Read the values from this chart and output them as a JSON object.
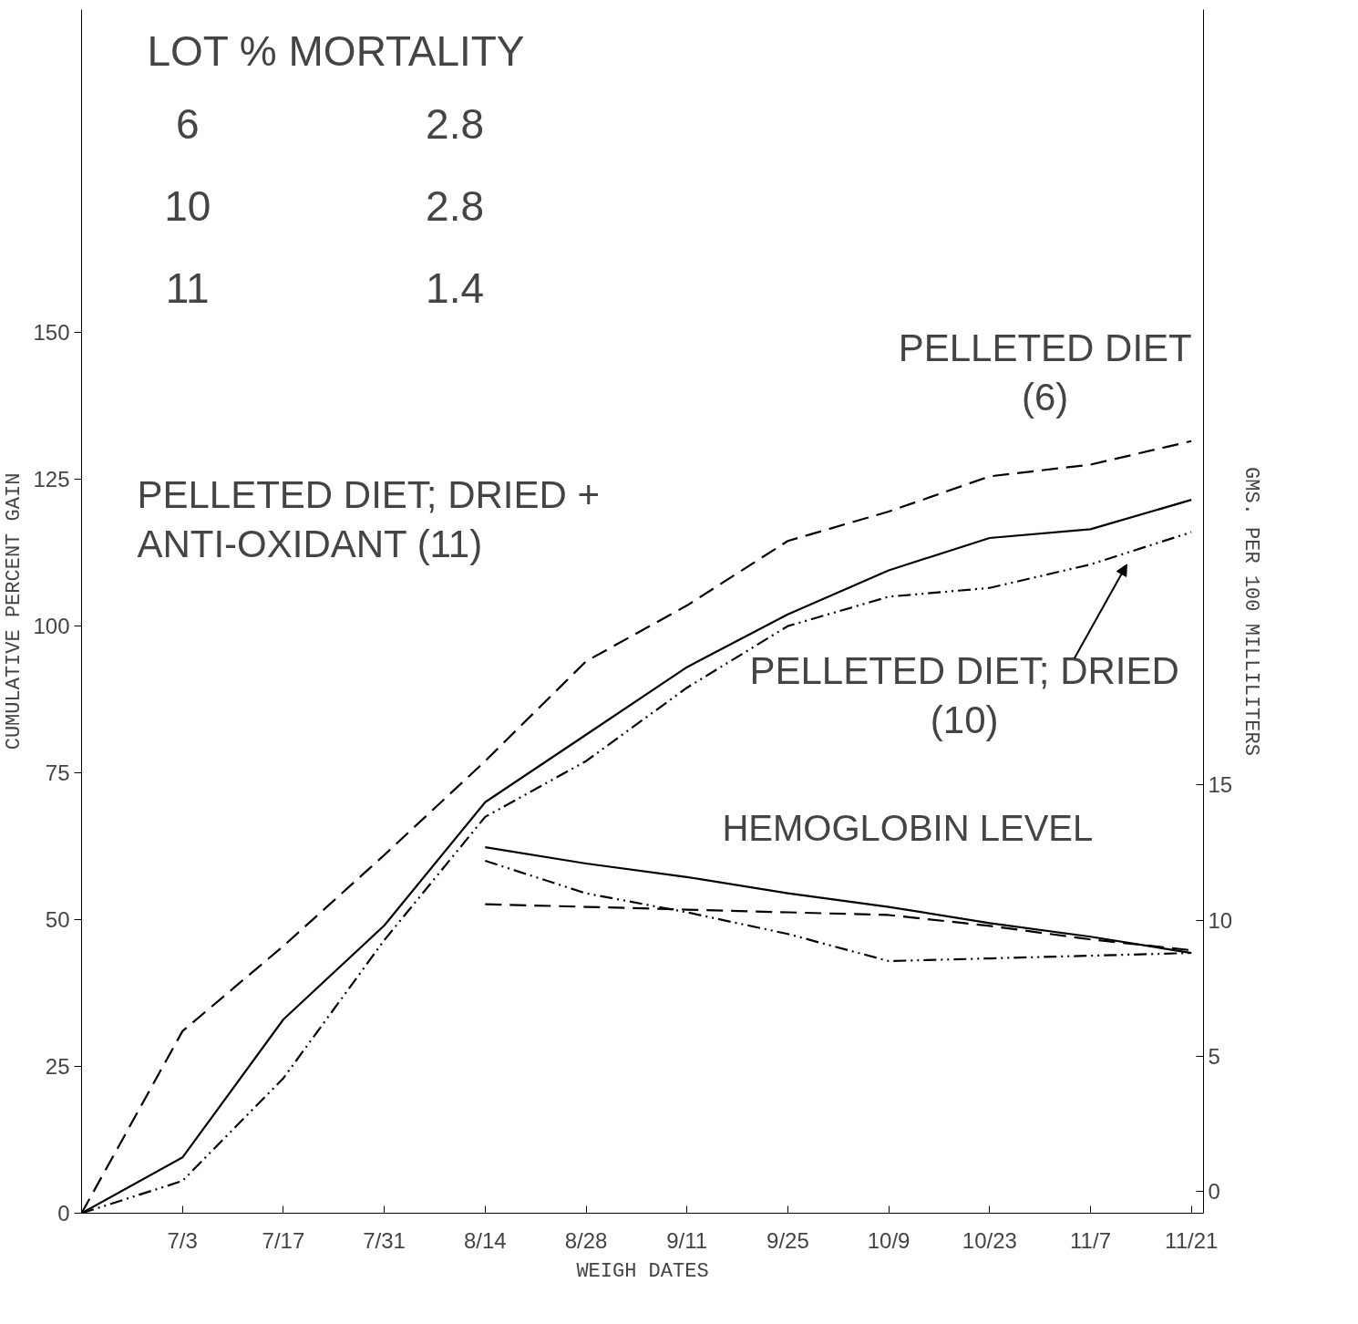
{
  "chart_data": {
    "type": "line",
    "xlabel": "WEIGH DATES",
    "ylabel": "CUMULATIVE PERCENT GAIN",
    "y2label": "GMS. PER 100 MILLILITERS",
    "categories": [
      null,
      "7/3",
      "7/17",
      "7/31",
      "8/14",
      "8/28",
      "9/11",
      "9/25",
      "10/9",
      "10/23",
      "11/7",
      "11/21"
    ],
    "series": [
      {
        "color": "#000000",
        "line_style": "dashed",
        "values": [
          0,
          31,
          45.5,
          61,
          77,
          94,
          103.5,
          114.5,
          119.5,
          125.5,
          127.5,
          131.5
        ]
      },
      {
        "color": "#000000",
        "line_style": "solid",
        "values": [
          0,
          9.5,
          33,
          49,
          70,
          81.5,
          93,
          102,
          109.5,
          115,
          116.5,
          121.5
        ]
      },
      {
        "color": "#000000",
        "line_style": "dotted",
        "values": [
          0,
          5.5,
          23,
          46.5,
          67.5,
          77,
          89.5,
          100,
          105,
          106.5,
          110.5,
          116
        ]
      },
      {
        "color": "#000000",
        "line_style": "solid",
        "axis": "y2",
        "values": [
          null,
          null,
          null,
          null,
          12.7,
          12.1,
          11.6,
          11,
          10.5,
          9.9,
          9.4,
          8.8
        ]
      },
      {
        "color": "#000000",
        "line_style": "dashed",
        "axis": "y2",
        "values": [
          null,
          null,
          null,
          null,
          10.6,
          10.5,
          10.4,
          10.3,
          10.2,
          9.8,
          9.3,
          8.9
        ]
      },
      {
        "color": "#000000",
        "line_style": "dotted",
        "axis": "y2",
        "values": [
          null,
          null,
          null,
          null,
          12.2,
          11,
          10.3,
          9.5,
          8.5,
          8.6,
          8.7,
          8.8
        ]
      }
    ],
    "ylim": [
      0,
      205
    ],
    "yticks": [
      0,
      25,
      50,
      75,
      100,
      125,
      150
    ],
    "y2lim": [
      -0.8,
      43.6
    ],
    "y2ticks": [
      0,
      5,
      10,
      15
    ],
    "grid": false,
    "annotations": [
      "LOT % MORTALITY",
      "6",
      "2.8",
      "10",
      "2.8",
      "11",
      "1.4",
      "PELLETED DIET\n(6)",
      "PELLETED DIET; DRIED +\nANTI-OXIDANT (11)",
      "PELLETED DIET; DRIED\n(10)",
      "HEMOGLOBIN LEVEL"
    ]
  }
}
